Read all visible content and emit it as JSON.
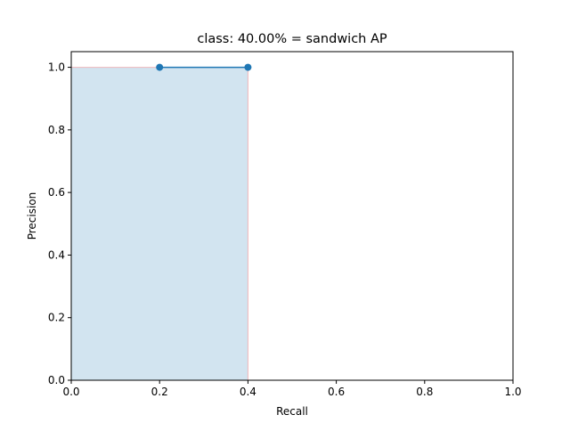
{
  "chart_data": {
    "type": "line",
    "title": "class: 40.00% = sandwich AP",
    "xlabel": "Recall",
    "ylabel": "Precision",
    "xlim": [
      0.0,
      1.0
    ],
    "ylim": [
      0.0,
      1.05
    ],
    "x_ticks": [
      "0.0",
      "0.2",
      "0.4",
      "0.6",
      "0.8",
      "1.0"
    ],
    "y_ticks": [
      "0.0",
      "0.2",
      "0.4",
      "0.6",
      "0.8",
      "1.0"
    ],
    "grid": false,
    "series": [
      {
        "x": [
          0.2,
          0.4
        ],
        "y": [
          1.0,
          1.0
        ],
        "color": "#1f77b4",
        "marker": "circle"
      }
    ],
    "shaded_area": {
      "x": [
        0.0,
        0.0,
        0.4,
        0.4
      ],
      "y": [
        0.0,
        1.0,
        1.0,
        0.0
      ],
      "fill_color": "#1f77b4",
      "fill_opacity": 0.2,
      "edge_color": "#ff0000"
    }
  }
}
